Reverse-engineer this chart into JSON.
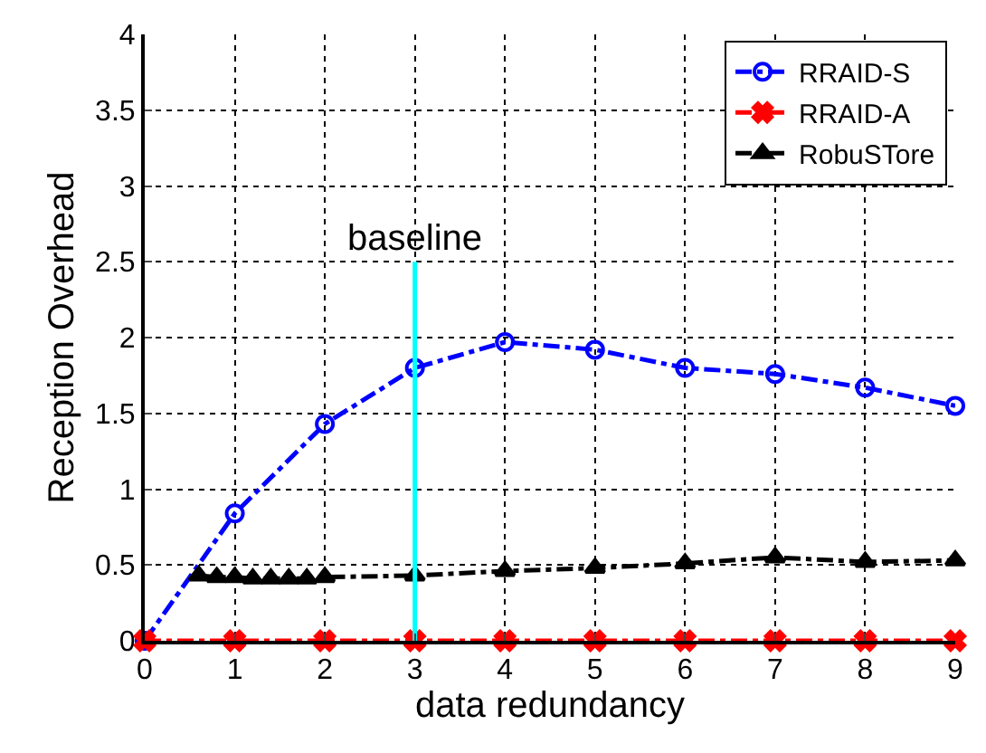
{
  "chart_data": {
    "type": "line",
    "xlabel": "data redundancy",
    "ylabel": "Reception Overhead",
    "xlim": [
      0,
      9
    ],
    "xticks": [
      0,
      1,
      2,
      3,
      4,
      5,
      6,
      7,
      8,
      9
    ],
    "ylim": [
      0,
      4
    ],
    "yticks": [
      0,
      0.5,
      1,
      1.5,
      2,
      2.5,
      3,
      3.5,
      4
    ],
    "grid": true,
    "legend": "top right",
    "series": [
      {
        "name": "RRAID-S",
        "color": "#0000ff",
        "marker": "circle",
        "line_style": "dashdot",
        "x": [
          0,
          1,
          2,
          3,
          4,
          5,
          6,
          7,
          8,
          9
        ],
        "values": [
          0,
          0.84,
          1.43,
          1.8,
          1.97,
          1.92,
          1.8,
          1.76,
          1.67,
          1.55
        ]
      },
      {
        "name": "RRAID-A",
        "color": "#ff0000",
        "marker": "cross",
        "line_style": "dashdot",
        "x": [
          0,
          1,
          2,
          3,
          4,
          5,
          6,
          7,
          8,
          9
        ],
        "values": [
          0,
          0,
          0,
          0,
          0,
          0,
          0,
          0,
          0,
          0
        ]
      },
      {
        "name": "RobuSTore",
        "color": "#000000",
        "marker": "triangle",
        "line_style": "dashdot",
        "x": [
          0.6,
          0.8,
          1.0,
          1.2,
          1.4,
          1.6,
          1.8,
          2.0,
          3,
          4,
          5,
          6,
          7,
          8,
          9
        ],
        "values": [
          0.43,
          0.42,
          0.42,
          0.41,
          0.41,
          0.41,
          0.41,
          0.42,
          0.43,
          0.46,
          0.48,
          0.51,
          0.55,
          0.52,
          0.53
        ]
      },
      {
        "color": "#00ffff",
        "marker": "none",
        "line_style": "solid",
        "x": [
          3,
          3
        ],
        "values": [
          0,
          2.5
        ]
      }
    ],
    "annotations": [
      {
        "text": "baseline",
        "x": 3,
        "y": 2.5
      }
    ]
  }
}
